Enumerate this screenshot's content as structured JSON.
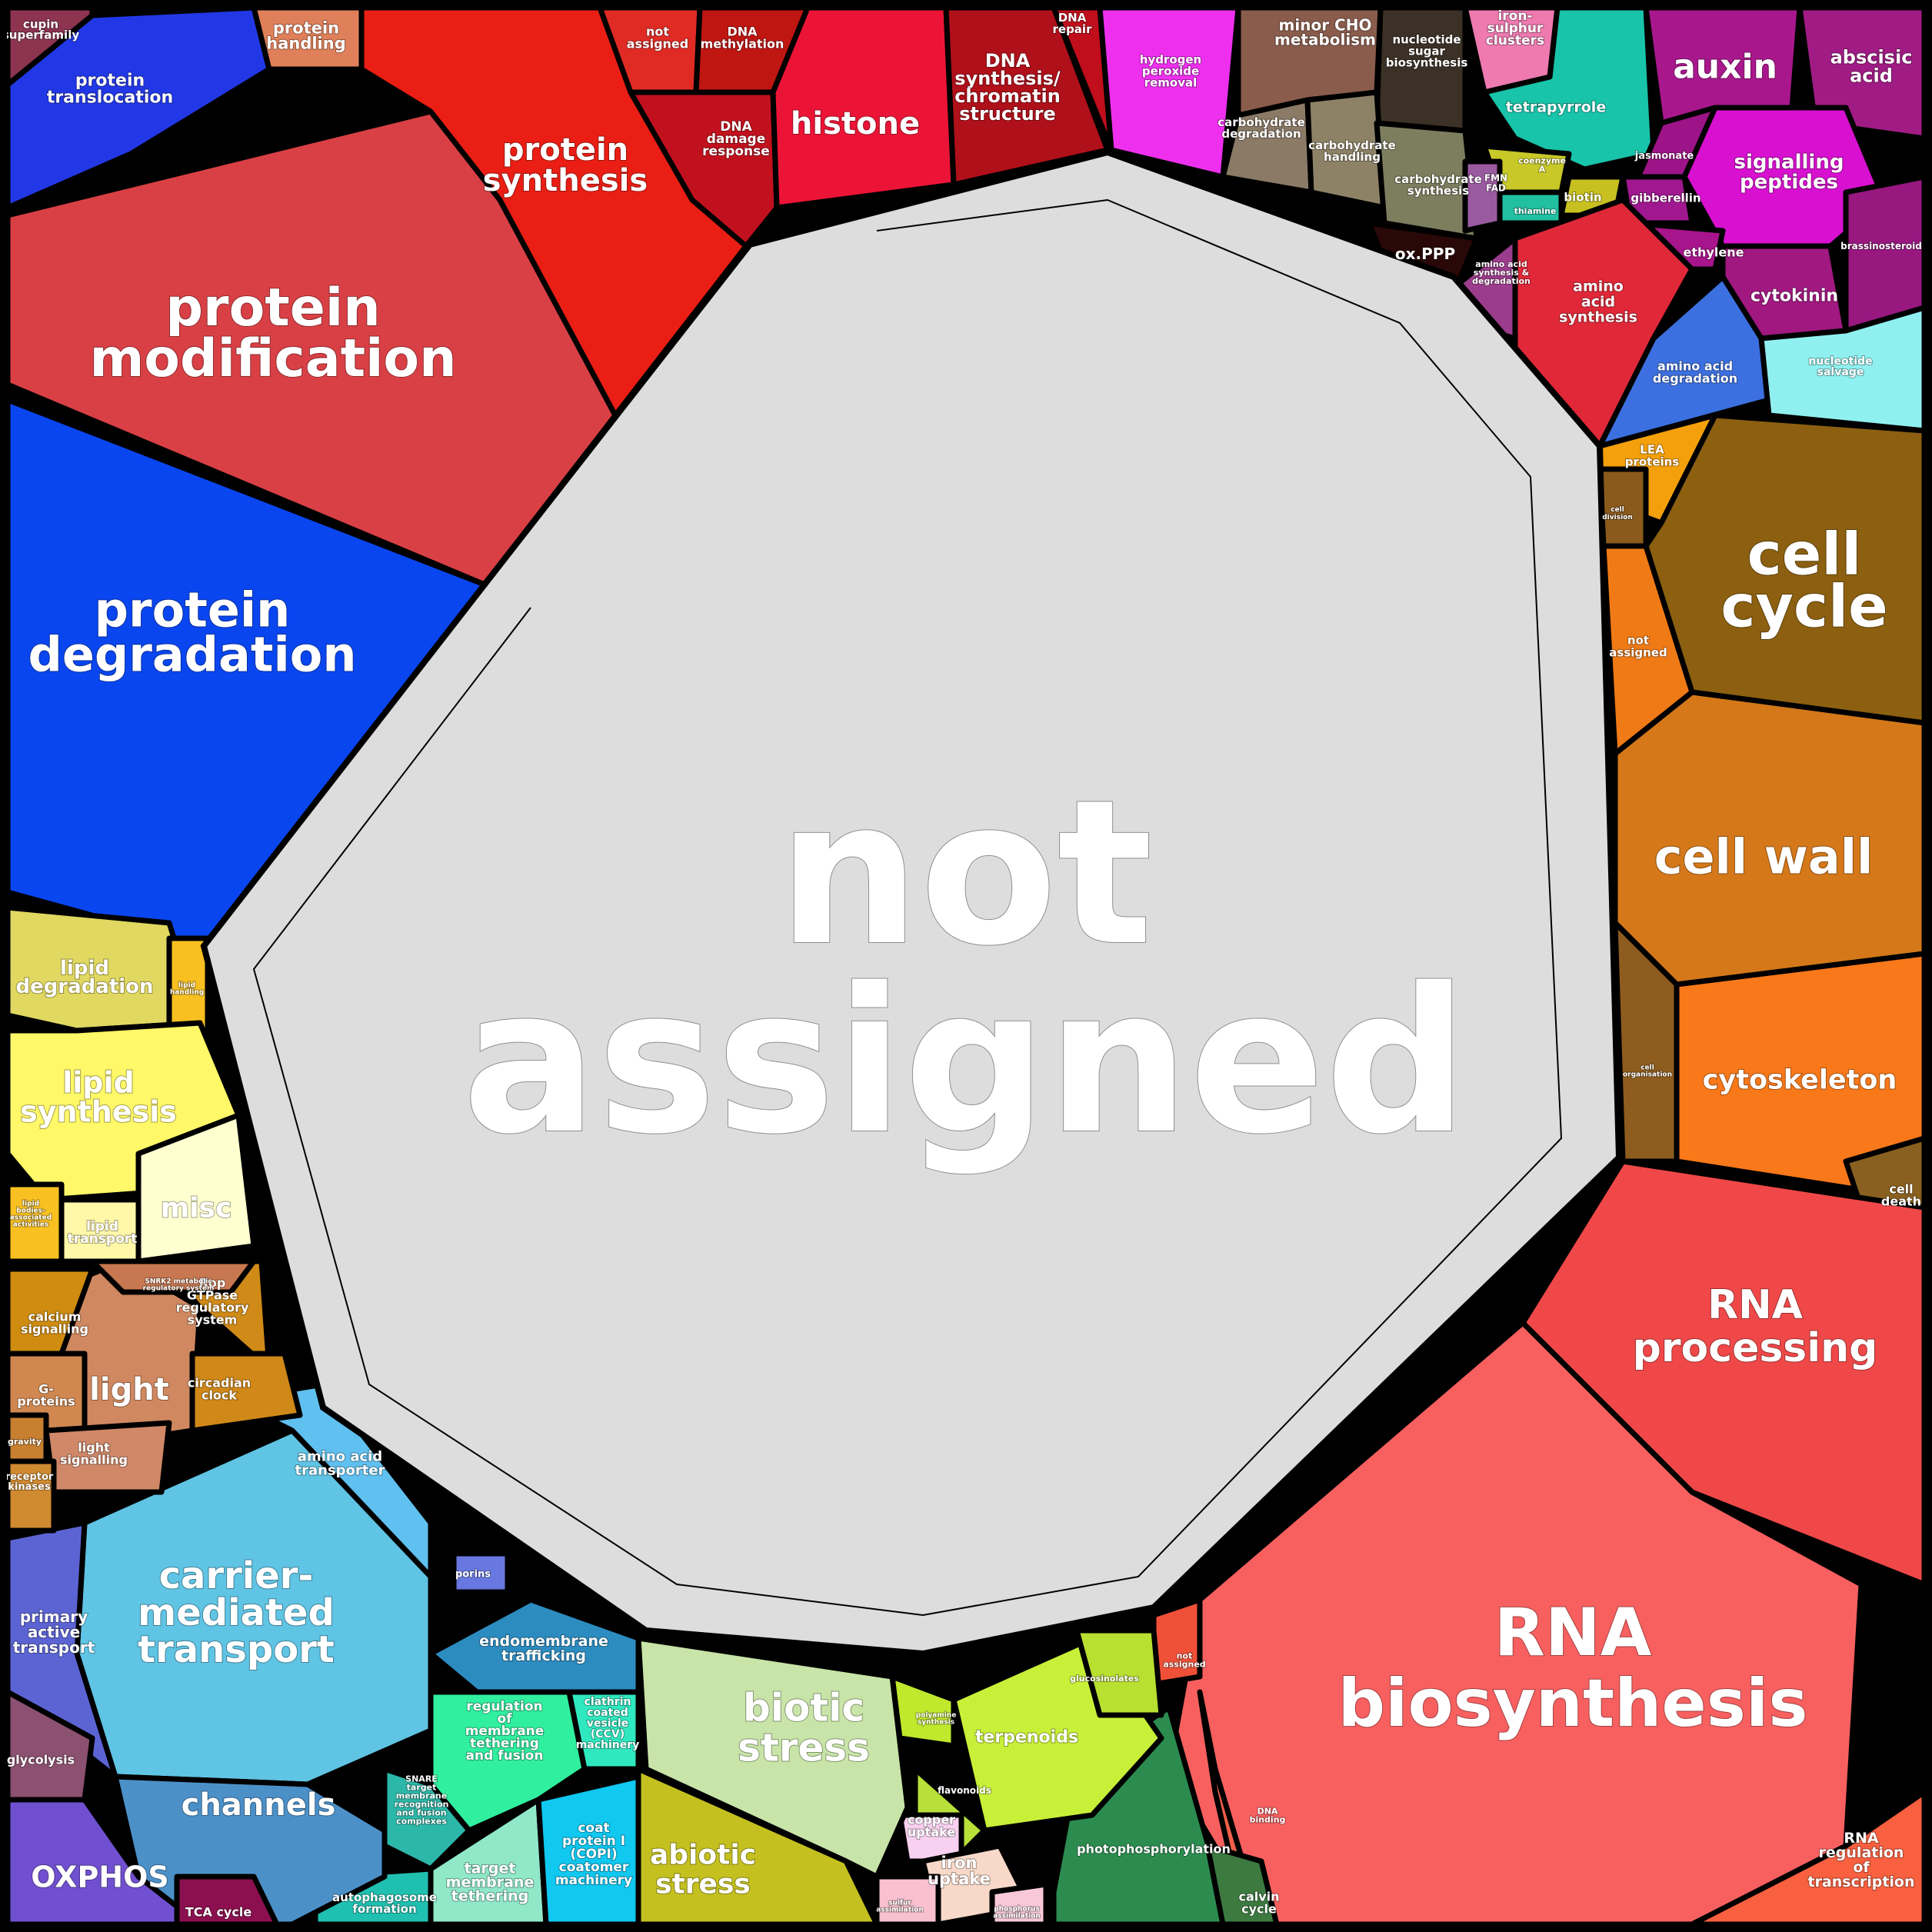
{
  "center_label": {
    "line1": "not",
    "line2": "assigned"
  },
  "regions": [
    {
      "id": "protein-modification",
      "color": "#d94045",
      "label": [
        "protein",
        "modification"
      ]
    },
    {
      "id": "protein-degradation",
      "color": "#0a46f0",
      "label": [
        "protein",
        "degradation"
      ]
    },
    {
      "id": "protein-translocation",
      "color": "#2238e6",
      "label": [
        "protein",
        "translocation"
      ]
    },
    {
      "id": "cupin-superfamily",
      "color": "#8c3450",
      "label": [
        "cupin",
        "superfamily"
      ]
    },
    {
      "id": "protein-handling",
      "color": "#e0805a",
      "label": [
        "protein",
        "handling"
      ]
    },
    {
      "id": "protein-synthesis",
      "color": "#ea1e14",
      "label": [
        "protein",
        "synthesis"
      ]
    },
    {
      "id": "not-assigned-top",
      "color": "#e02b24",
      "label": [
        "not",
        "assigned"
      ]
    },
    {
      "id": "dna-methylation",
      "color": "#c01612",
      "label": [
        "DNA",
        "methylation"
      ]
    },
    {
      "id": "dna-damage-response",
      "color": "#c2111e",
      "label": [
        "DNA",
        "damage",
        "response"
      ]
    },
    {
      "id": "histone",
      "color": "#ec1436",
      "label": [
        "histone"
      ]
    },
    {
      "id": "dna-synthesis",
      "color": "#b0101a",
      "label": [
        "DNA",
        "synthesis/",
        "chromatin",
        "structure"
      ]
    },
    {
      "id": "dna-repair",
      "color": "#c00e1c",
      "label": [
        "DNA",
        "repair"
      ]
    },
    {
      "id": "hydrogen-peroxide",
      "color": "#ee30ee",
      "label": [
        "hydrogen",
        "peroxide",
        "removal"
      ]
    },
    {
      "id": "minor-cho",
      "color": "#8a5c4c",
      "label": [
        "minor CHO",
        "metabolism"
      ]
    },
    {
      "id": "nucleotide-sugar",
      "color": "#3c3126",
      "label": [
        "nucleotide",
        "sugar",
        "biosynthesis"
      ]
    },
    {
      "id": "carbohydrate-degradation",
      "color": "#8a7a66",
      "label": [
        "carbohydrate",
        "degradation"
      ]
    },
    {
      "id": "carbohydrate-handling",
      "color": "#8e8266",
      "label": [
        "carbohydrate",
        "handling"
      ]
    },
    {
      "id": "carbohydrate-synthesis",
      "color": "#7c7e5e",
      "label": [
        "carbohydrate",
        "synthesis"
      ]
    },
    {
      "id": "ox-ppp",
      "color": "#2a0808",
      "label": [
        "ox.PPP"
      ]
    },
    {
      "id": "iron-sulphur",
      "color": "#ee7ab0",
      "label": [
        "iron-",
        "sulphur",
        "clusters"
      ]
    },
    {
      "id": "tetrapyrrole",
      "color": "#18c4aa",
      "label": [
        "tetrapyrrole"
      ]
    },
    {
      "id": "coenzyme-a",
      "color": "#c8c828",
      "label": [
        "coenzyme",
        "A"
      ]
    },
    {
      "id": "biotin",
      "color": "#c8c020",
      "label": [
        "biotin"
      ]
    },
    {
      "id": "fmn-fad",
      "color": "#9a5aa0",
      "label": [
        "FMN",
        "FAD"
      ]
    },
    {
      "id": "thiamine",
      "color": "#20c0a0",
      "label": [
        "thiamine"
      ]
    },
    {
      "id": "auxin",
      "color": "#a8188c",
      "label": [
        "auxin"
      ]
    },
    {
      "id": "abscisic-acid",
      "color": "#a01c84",
      "label": [
        "abscisic",
        "acid"
      ]
    },
    {
      "id": "signalling-peptides",
      "color": "#d810d0",
      "label": [
        "signalling",
        "peptides"
      ]
    },
    {
      "id": "jasmonate",
      "color": "#9c1488",
      "label": [
        "jasmonate"
      ]
    },
    {
      "id": "gibberellin",
      "color": "#a01890",
      "label": [
        "gibberellin"
      ]
    },
    {
      "id": "ethylene",
      "color": "#a8148c",
      "label": [
        "ethylene"
      ]
    },
    {
      "id": "cytokinin",
      "color": "#a01880",
      "label": [
        "cytokinin"
      ]
    },
    {
      "id": "brassinosteroid",
      "color": "#981880",
      "label": [
        "brassinosteroid"
      ]
    },
    {
      "id": "amino-acid-synthesis",
      "color": "#e02838",
      "label": [
        "amino",
        "acid",
        "synthesis"
      ]
    },
    {
      "id": "amino-acid-synth-deg",
      "color": "#9c3c8c",
      "label": [
        "amino acid",
        "synthesis &",
        "degradation"
      ]
    },
    {
      "id": "amino-acid-degradation",
      "color": "#3c70e0",
      "label": [
        "amino acid",
        "degradation"
      ]
    },
    {
      "id": "nucleotide-salvage",
      "color": "#90f0f0",
      "label": [
        "nucleotide",
        "salvage"
      ]
    },
    {
      "id": "lea-proteins",
      "color": "#f4a00c",
      "label": [
        "LEA",
        "proteins"
      ]
    },
    {
      "id": "cell-division",
      "color": "#8a5a1c",
      "label": [
        "cell",
        "division"
      ]
    },
    {
      "id": "cell-cycle",
      "color": "#8c6010",
      "label": [
        "cell",
        "cycle"
      ]
    },
    {
      "id": "not-assigned-right",
      "color": "#f07a16",
      "label": [
        "not",
        "assigned"
      ]
    },
    {
      "id": "cell-wall",
      "color": "#d4781a",
      "label": [
        "cell wall"
      ]
    },
    {
      "id": "cell-organisation",
      "color": "#8e5c1e",
      "label": [
        "cell",
        "organisation"
      ]
    },
    {
      "id": "cytoskeleton",
      "color": "#f8781a",
      "label": [
        "cytoskeleton"
      ]
    },
    {
      "id": "cell-death",
      "color": "#8a6020",
      "label": [
        "cell",
        "death"
      ]
    },
    {
      "id": "rna-processing",
      "color": "#f04848",
      "label": [
        "RNA",
        "processing"
      ]
    },
    {
      "id": "rna-biosynthesis",
      "color": "#f86060",
      "label": [
        "RNA",
        "biosynthesis"
      ]
    },
    {
      "id": "rna-regulation",
      "color": "#f86040",
      "label": [
        "RNA",
        "regulation",
        "of",
        "transcription"
      ]
    },
    {
      "id": "not-assigned-rb",
      "color": "#f05038",
      "label": [
        "not",
        "assigned"
      ]
    },
    {
      "id": "dna-binding",
      "color": "#f06048",
      "label": [
        "DNA",
        "binding"
      ]
    },
    {
      "id": "photophosphorylation",
      "color": "#2c8c50",
      "label": [
        "photophosphorylation"
      ]
    },
    {
      "id": "calvin-cycle",
      "color": "#3c7a40",
      "label": [
        "calvin",
        "cycle"
      ]
    },
    {
      "id": "terpenoids",
      "color": "#c8f038",
      "label": [
        "terpenoids"
      ]
    },
    {
      "id": "glucosinolates",
      "color": "#b8e030",
      "label": [
        "glucosinolates"
      ]
    },
    {
      "id": "polyamine",
      "color": "#c0e82c",
      "label": [
        "polyamine",
        "synthesis"
      ]
    },
    {
      "id": "flavonoids",
      "color": "#b8e038",
      "label": [
        "flavonoids"
      ]
    },
    {
      "id": "copper-uptake",
      "color": "#f8d0f0",
      "label": [
        "copper",
        "uptake"
      ]
    },
    {
      "id": "iron-uptake",
      "color": "#f8d8c8",
      "label": [
        "iron",
        "uptake"
      ]
    },
    {
      "id": "sulfur-assimilation",
      "color": "#f8c0d0",
      "label": [
        "sulfur",
        "assimilation"
      ]
    },
    {
      "id": "phosphorus-assimilation",
      "color": "#f8c8d8",
      "label": [
        "phosphorus",
        "assimilation"
      ]
    },
    {
      "id": "biotic-stress",
      "color": "#c8e4a8",
      "label": [
        "biotic",
        "stress"
      ]
    },
    {
      "id": "abiotic-stress",
      "color": "#c4c020",
      "label": [
        "abiotic",
        "stress"
      ]
    },
    {
      "id": "endomembrane-trafficking",
      "color": "#2c8cc0",
      "label": [
        "endomembrane",
        "trafficking"
      ]
    },
    {
      "id": "regulation-membrane",
      "color": "#30f0a0",
      "label": [
        "regulation",
        "of",
        "membrane",
        "tethering",
        "and fusion"
      ]
    },
    {
      "id": "clathrin",
      "color": "#30e8c0",
      "label": [
        "clathrin",
        "coated",
        "vesicle",
        "(CCV)",
        "machinery"
      ]
    },
    {
      "id": "snare",
      "color": "#2cb8a8",
      "label": [
        "SNARE",
        "target",
        "membrane",
        "recognition",
        "and fusion",
        "complexes"
      ]
    },
    {
      "id": "target-membrane-tethering",
      "color": "#90e8c8",
      "label": [
        "target",
        "membrane",
        "tethering"
      ]
    },
    {
      "id": "copi",
      "color": "#10c8f0",
      "label": [
        "coat",
        "protein I",
        "(COPI)",
        "coatomer",
        "machinery"
      ]
    },
    {
      "id": "autophagosome",
      "color": "#20c0b0",
      "label": [
        "autophagosome",
        "formation"
      ]
    },
    {
      "id": "porins",
      "color": "#6878e0",
      "label": [
        "porins"
      ]
    },
    {
      "id": "carrier-mediated",
      "color": "#60c4e4",
      "label": [
        "carrier-",
        "mediated",
        "transport"
      ]
    },
    {
      "id": "amino-acid-transporter",
      "color": "#60c0f0",
      "label": [
        "amino acid",
        "transporter"
      ]
    },
    {
      "id": "channels",
      "color": "#4c90c8",
      "label": [
        "channels"
      ]
    },
    {
      "id": "primary-active-transport",
      "color": "#5c64d4",
      "label": [
        "primary",
        "active",
        "transport"
      ]
    },
    {
      "id": "glycolysis",
      "color": "#8c5070",
      "label": [
        "glycolysis"
      ]
    },
    {
      "id": "oxphos",
      "color": "#7050d0",
      "label": [
        "OXPHOS"
      ]
    },
    {
      "id": "tca-cycle",
      "color": "#8c1050",
      "label": [
        "TCA cycle"
      ]
    },
    {
      "id": "light",
      "color": "#d08860",
      "label": [
        "light"
      ]
    },
    {
      "id": "calcium-signalling",
      "color": "#d08c10",
      "label": [
        "calcium",
        "signalling"
      ]
    },
    {
      "id": "rop-gtpase",
      "color": "#d08a18",
      "label": [
        "Rop",
        "GTPase",
        "regulatory",
        "system"
      ]
    },
    {
      "id": "snrk2",
      "color": "#c87850",
      "label": [
        "SNRK2 metabolic",
        "regulatory system"
      ]
    },
    {
      "id": "circadian-clock",
      "color": "#d08818",
      "label": [
        "circadian",
        "clock"
      ]
    },
    {
      "id": "g-proteins",
      "color": "#d08850",
      "label": [
        "G-",
        "proteins"
      ]
    },
    {
      "id": "gravity",
      "color": "#c88030",
      "label": [
        "gravity"
      ]
    },
    {
      "id": "light-signalling",
      "color": "#d08868",
      "label": [
        "light",
        "signalling"
      ]
    },
    {
      "id": "receptor-kinases",
      "color": "#d08a30",
      "label": [
        "receptor",
        "kinases"
      ]
    },
    {
      "id": "lipid-degradation",
      "color": "#e0d860",
      "label": [
        "lipid",
        "degradation"
      ]
    },
    {
      "id": "lipid-handling",
      "color": "#f8c020",
      "label": [
        "lipid",
        "handling"
      ]
    },
    {
      "id": "lipid-synthesis",
      "color": "#fff868",
      "label": [
        "lipid",
        "synthesis"
      ]
    },
    {
      "id": "lipid-transport",
      "color": "#fff8a8",
      "label": [
        "lipid",
        "transport"
      ]
    },
    {
      "id": "misc",
      "color": "#ffffd0",
      "label": [
        "misc"
      ]
    },
    {
      "id": "lipid-bodies",
      "color": "#f8c020",
      "label": [
        "lipid",
        "bodies-",
        "associated",
        "activities"
      ]
    }
  ]
}
